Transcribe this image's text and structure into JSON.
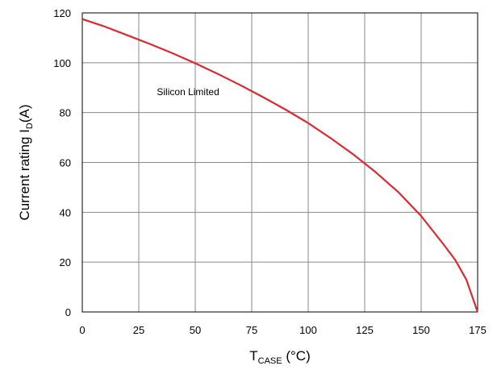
{
  "chart_data": {
    "type": "line",
    "title": "",
    "xlabel": {
      "main": "T",
      "sub": "CASE",
      "unit": " (°C)"
    },
    "ylabel": {
      "main": "Current rating I",
      "sub": "D",
      "unit": "(A)"
    },
    "xlim": [
      0,
      175
    ],
    "ylim": [
      0,
      120
    ],
    "xticks": [
      0,
      25,
      50,
      75,
      100,
      125,
      150,
      175
    ],
    "yticks": [
      0,
      20,
      40,
      60,
      80,
      100,
      120
    ],
    "grid": true,
    "annotations": [
      {
        "text": "Silicon Limited",
        "x": 33,
        "y": 87
      }
    ],
    "series": [
      {
        "color": "#e0272e",
        "x": [
          0,
          10,
          20,
          30,
          40,
          50,
          60,
          70,
          80,
          90,
          100,
          110,
          120,
          130,
          140,
          150,
          160,
          165,
          170,
          175
        ],
        "y": [
          117.5,
          114.5,
          111,
          107.5,
          103.8,
          99.8,
          95.5,
          91,
          86.2,
          81.2,
          75.8,
          69.7,
          63.2,
          56,
          48,
          38.5,
          27,
          21,
          13,
          0
        ]
      }
    ]
  }
}
